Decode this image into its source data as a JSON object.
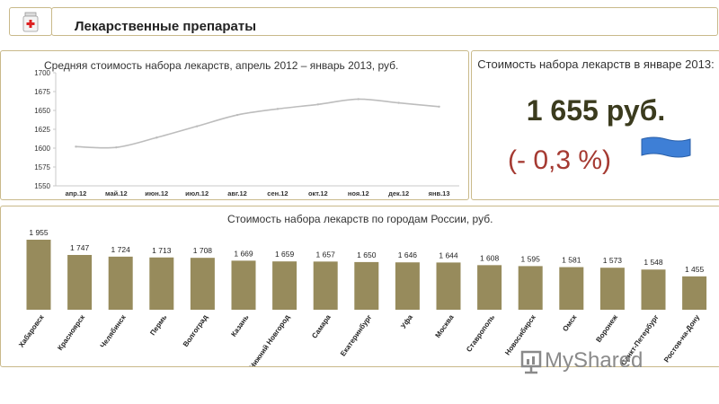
{
  "header": {
    "title": "Лекарственные препараты"
  },
  "kpi": {
    "label": "Стоимость набора лекарств в январе 2013:",
    "value": "1 655 руб.",
    "change": "(- 0,3 %)"
  },
  "watermark": "MyShared",
  "chart_data": [
    {
      "type": "line",
      "title": "Средняя стоимость набора лекарств, апрель 2012 – январь 2013, руб.",
      "categories": [
        "апр.12",
        "май.12",
        "июн.12",
        "июл.12",
        "авг.12",
        "сен.12",
        "окт.12",
        "ноя.12",
        "дек.12",
        "янв.13"
      ],
      "values": [
        1602,
        1601,
        1614,
        1629,
        1644,
        1652,
        1658,
        1665,
        1660,
        1655
      ],
      "ylim": [
        1550,
        1700
      ],
      "yticks": [
        "1550",
        "1575",
        "1600",
        "1625",
        "1650",
        "1675",
        "1700"
      ],
      "color": "#bdbdbd"
    },
    {
      "type": "bar",
      "title": "Стоимость набора лекарств по городам России, руб.",
      "categories": [
        "Хабаровск",
        "Красноярск",
        "Челябинск",
        "Пермь",
        "Волгоград",
        "Казань",
        "Нижний Новгород",
        "Самара",
        "Екатеринбург",
        "Уфа",
        "Москва",
        "Ставрополь",
        "Новосибирск",
        "Омск",
        "Воронеж",
        "Санкт-Петербург",
        "Ростов-на-Дону"
      ],
      "values": [
        1955,
        1747,
        1724,
        1713,
        1708,
        1669,
        1659,
        1657,
        1650,
        1646,
        1644,
        1608,
        1595,
        1581,
        1573,
        1548,
        1455
      ],
      "labels": [
        "1 955",
        "1 747",
        "1 724",
        "1 713",
        "1 708",
        "1 669",
        "1 659",
        "1 657",
        "1 650",
        "1 646",
        "1 644",
        "1 608",
        "1 595",
        "1 581",
        "1 573",
        "1 548",
        "1 455"
      ],
      "color": "#978b5c"
    }
  ]
}
